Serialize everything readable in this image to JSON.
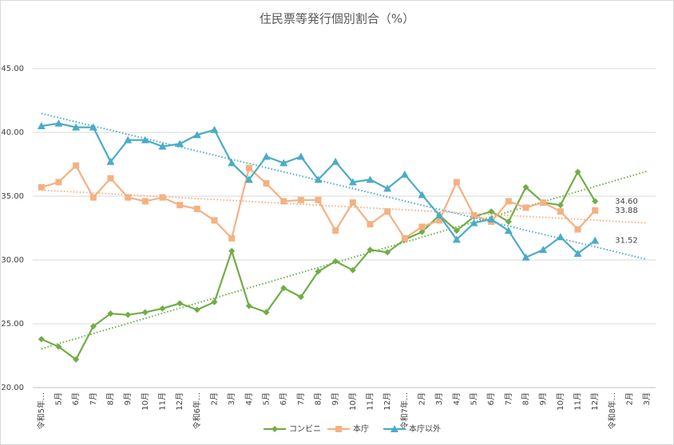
{
  "chart_data": {
    "type": "line",
    "title": "住民票等発行個別割合（%）",
    "categories": [
      "令和5年…",
      "5月",
      "6月",
      "7月",
      "8月",
      "9月",
      "10月",
      "11月",
      "12月",
      "令和6年…",
      "2月",
      "3月",
      "4月",
      "5月",
      "6月",
      "7月",
      "8月",
      "9月",
      "10月",
      "11月",
      "12月",
      "令和7年…",
      "2月",
      "3月",
      "4月",
      "5月",
      "6月",
      "7月",
      "8月",
      "9月",
      "10月",
      "11月",
      "12月",
      "令和8年…",
      "2月",
      "3月"
    ],
    "ylim": [
      20,
      45
    ],
    "yticks": [
      {
        "value": 20,
        "label": "20.00"
      },
      {
        "value": 25,
        "label": "25.00"
      },
      {
        "value": 30,
        "label": "30.00"
      },
      {
        "value": 35,
        "label": "35.00"
      },
      {
        "value": 40,
        "label": "40.00"
      },
      {
        "value": 45,
        "label": "45.00"
      }
    ],
    "grid": true,
    "trendline": true,
    "legend": "bottom",
    "series": [
      {
        "name": "コンビニ",
        "color": "#70ad47",
        "marker": "diamond",
        "values": [
          23.8,
          23.2,
          22.2,
          24.8,
          25.8,
          25.7,
          25.9,
          26.2,
          26.6,
          26.1,
          26.7,
          30.7,
          26.4,
          25.9,
          27.8,
          27.1,
          29.1,
          29.9,
          29.2,
          30.8,
          30.6,
          31.6,
          32.2,
          33.5,
          32.3,
          33.4,
          33.8,
          33.0,
          35.7,
          34.5,
          34.3,
          36.9,
          34.6,
          null,
          null,
          null
        ],
        "value_labels": [
          null,
          null,
          null,
          null,
          null,
          null,
          null,
          null,
          null,
          null,
          null,
          null,
          null,
          null,
          null,
          null,
          null,
          null,
          null,
          null,
          null,
          null,
          null,
          null,
          null,
          null,
          null,
          null,
          null,
          null,
          null,
          null,
          "34.60",
          null,
          null,
          null
        ]
      },
      {
        "name": "本庁",
        "color": "#f4b183",
        "marker": "square",
        "values": [
          35.7,
          36.1,
          37.4,
          34.9,
          36.4,
          34.9,
          34.6,
          34.9,
          34.3,
          34.0,
          33.1,
          31.7,
          37.2,
          36.0,
          34.6,
          34.7,
          34.7,
          32.3,
          34.5,
          32.8,
          33.8,
          31.7,
          32.6,
          33.1,
          36.1,
          33.5,
          33.0,
          34.6,
          34.1,
          34.5,
          33.8,
          32.4,
          33.88,
          null,
          null,
          null
        ],
        "value_labels": [
          null,
          null,
          null,
          null,
          null,
          null,
          null,
          null,
          null,
          null,
          null,
          null,
          null,
          null,
          null,
          null,
          null,
          null,
          null,
          null,
          null,
          null,
          null,
          null,
          null,
          null,
          null,
          null,
          null,
          null,
          null,
          null,
          "33.88",
          null,
          null,
          null
        ]
      },
      {
        "name": "本庁以外",
        "color": "#4bacc6",
        "marker": "triangle",
        "values": [
          40.5,
          40.7,
          40.4,
          40.4,
          37.7,
          39.4,
          39.4,
          38.9,
          39.1,
          39.8,
          40.2,
          37.6,
          36.3,
          38.1,
          37.6,
          38.1,
          36.3,
          37.7,
          36.1,
          36.3,
          35.6,
          36.7,
          35.1,
          33.5,
          31.6,
          32.9,
          33.2,
          32.3,
          30.2,
          30.8,
          31.8,
          30.5,
          31.52,
          null,
          null,
          null
        ],
        "value_labels": [
          null,
          null,
          null,
          null,
          null,
          null,
          null,
          null,
          null,
          null,
          null,
          null,
          null,
          null,
          null,
          null,
          null,
          null,
          null,
          null,
          null,
          null,
          null,
          null,
          null,
          null,
          null,
          null,
          null,
          null,
          null,
          null,
          "31.52",
          null,
          null,
          null
        ]
      }
    ]
  }
}
